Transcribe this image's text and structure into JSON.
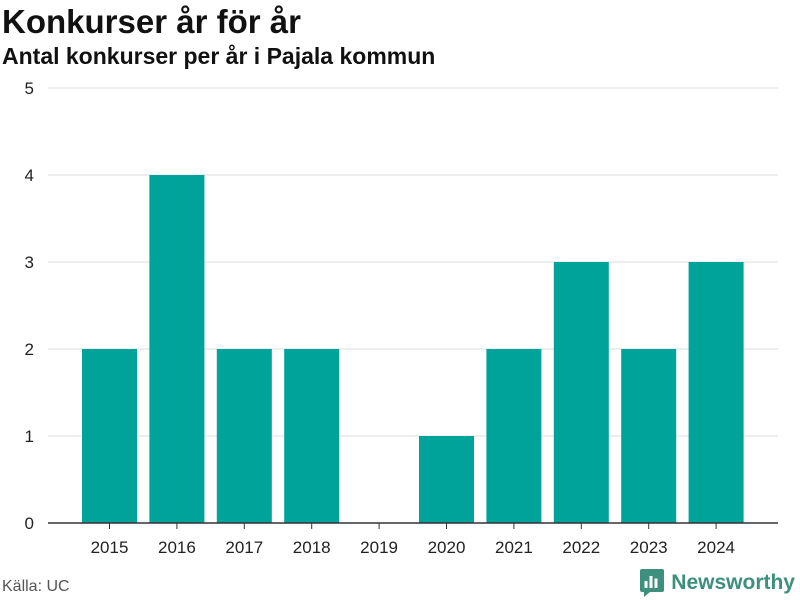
{
  "chart_data": {
    "type": "bar",
    "title": "Konkurser år för år",
    "subtitle": "Antal konkurser per år i Pajala kommun",
    "categories": [
      "2015",
      "2016",
      "2017",
      "2018",
      "2019",
      "2020",
      "2021",
      "2022",
      "2023",
      "2024"
    ],
    "values": [
      2,
      4,
      2,
      2,
      0,
      1,
      2,
      3,
      2,
      3
    ],
    "yticks": [
      "0",
      "1",
      "2",
      "3",
      "4",
      "5"
    ],
    "ylim": [
      0,
      5
    ],
    "xlabel": "",
    "ylabel": "",
    "grid": true,
    "bar_color": "#00a39a"
  },
  "footer": {
    "source": "Källa: UC",
    "brand": "Newsworthy"
  },
  "colors": {
    "brand": "#3d8f7e",
    "grid": "#dddddd",
    "axis": "#333333"
  }
}
